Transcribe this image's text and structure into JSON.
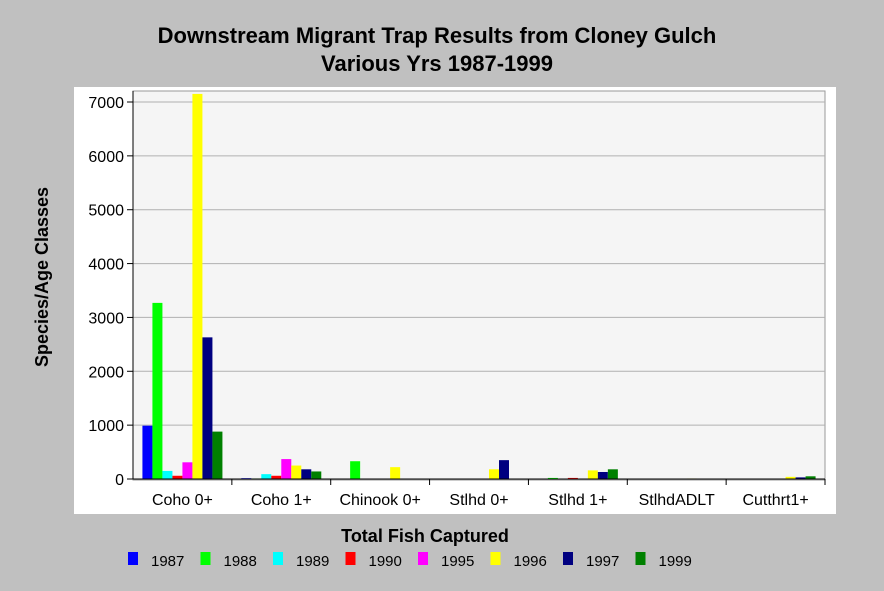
{
  "chart_data": {
    "type": "bar",
    "title": "Downstream Migrant Trap Results from Cloney Gulch",
    "subtitle": "Various Yrs 1987-1999",
    "xlabel": "Total Fish Captured",
    "ylabel": "Species/Age Classes",
    "ylim": [
      0,
      7200
    ],
    "yticks": [
      0,
      1000,
      2000,
      3000,
      4000,
      5000,
      6000,
      7000
    ],
    "grid": true,
    "legend_position": "bottom",
    "categories": [
      "Coho 0+",
      "Coho 1+",
      "Chinook 0+",
      "Stlhd 0+",
      "Stlhd 1+",
      "StlhdADLT",
      "Cutthrt1+"
    ],
    "series": [
      {
        "name": "1987",
        "color": "#0000ff",
        "values": [
          990,
          15,
          0,
          0,
          0,
          0,
          0
        ]
      },
      {
        "name": "1988",
        "color": "#00ff00",
        "values": [
          3270,
          10,
          330,
          0,
          20,
          0,
          0
        ]
      },
      {
        "name": "1989",
        "color": "#00ffff",
        "values": [
          150,
          90,
          0,
          0,
          0,
          0,
          0
        ]
      },
      {
        "name": "1990",
        "color": "#ff0000",
        "values": [
          60,
          60,
          0,
          0,
          20,
          0,
          0
        ]
      },
      {
        "name": "1995",
        "color": "#ff00ff",
        "values": [
          310,
          370,
          0,
          0,
          0,
          0,
          0
        ]
      },
      {
        "name": "1996",
        "color": "#ffff00",
        "values": [
          7150,
          250,
          220,
          180,
          160,
          10,
          40
        ]
      },
      {
        "name": "1997",
        "color": "#000080",
        "values": [
          2630,
          180,
          0,
          350,
          130,
          0,
          30
        ]
      },
      {
        "name": "1999",
        "color": "#008000",
        "values": [
          880,
          140,
          0,
          0,
          180,
          0,
          50
        ]
      }
    ]
  }
}
